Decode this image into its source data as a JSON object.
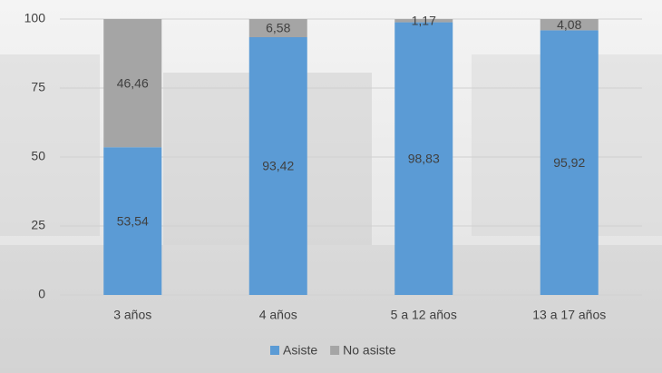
{
  "chart_data": {
    "type": "stacked_bar",
    "categories": [
      "3 años",
      "4 años",
      "5 a 12 años",
      "13 a 17 años"
    ],
    "series": [
      {
        "name": "Asiste",
        "color": "#5b9bd5",
        "values": [
          53.54,
          93.42,
          98.83,
          95.92
        ],
        "value_labels": [
          "53,54",
          "93,42",
          "98,83",
          "95,92"
        ]
      },
      {
        "name": "No asiste",
        "color": "#a5a5a5",
        "values": [
          46.46,
          6.58,
          1.17,
          4.08
        ],
        "value_labels": [
          "46,46",
          "6,58",
          "1,17",
          "4,08"
        ]
      }
    ],
    "ylim": [
      0,
      100
    ],
    "yticks": [
      0,
      25,
      50,
      75,
      100
    ],
    "grid": true,
    "legend": "bottom"
  }
}
